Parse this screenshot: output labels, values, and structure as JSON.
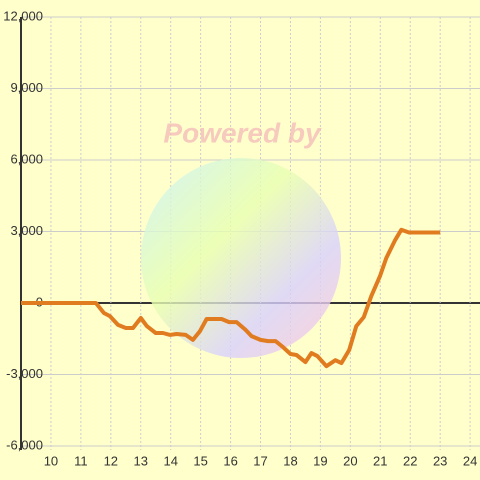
{
  "chart_data": {
    "type": "line",
    "watermark": "Powered by",
    "x": [
      9.0,
      11.5,
      11.77,
      11.97,
      12.24,
      12.5,
      12.74,
      13.0,
      13.2,
      13.5,
      13.74,
      13.98,
      14.2,
      14.5,
      14.74,
      14.98,
      15.2,
      15.5,
      15.7,
      15.95,
      16.2,
      16.5,
      16.7,
      17.0,
      17.25,
      17.5,
      17.75,
      18.0,
      18.2,
      18.5,
      18.7,
      18.9,
      19.2,
      19.5,
      19.7,
      19.96,
      20.2,
      20.45,
      20.7,
      20.99,
      21.2,
      21.5,
      21.7,
      21.96,
      22.26,
      23.0
    ],
    "series": [
      {
        "color": "#e07b20",
        "values": [
          0,
          0,
          -420,
          -550,
          -920,
          -1050,
          -1050,
          -630,
          -970,
          -1260,
          -1260,
          -1340,
          -1300,
          -1340,
          -1550,
          -1180,
          -670,
          -670,
          -670,
          -800,
          -800,
          -1130,
          -1390,
          -1550,
          -1600,
          -1600,
          -1850,
          -2140,
          -2180,
          -2480,
          -2100,
          -2230,
          -2650,
          -2400,
          -2520,
          -1970,
          -970,
          -590,
          290,
          1130,
          1890,
          2650,
          3070,
          2960,
          2960,
          2960
        ]
      }
    ],
    "xlim": [
      9,
      24.33
    ],
    "xticks": [
      10,
      11,
      12,
      13,
      14,
      15,
      16,
      17,
      18,
      19,
      20,
      21,
      22,
      23,
      24
    ],
    "ylim": [
      -6000,
      12000
    ],
    "yticks": [
      {
        "value": -6000,
        "label": "-6,000"
      },
      {
        "value": -3000,
        "label": "-3,000"
      },
      0,
      {
        "value": 3000,
        "label": "3,000"
      },
      {
        "value": 6000,
        "label": "6,000"
      },
      {
        "value": 9000,
        "label": "9,000"
      },
      {
        "value": 12000,
        "label": "12,000"
      }
    ],
    "grid": true
  }
}
